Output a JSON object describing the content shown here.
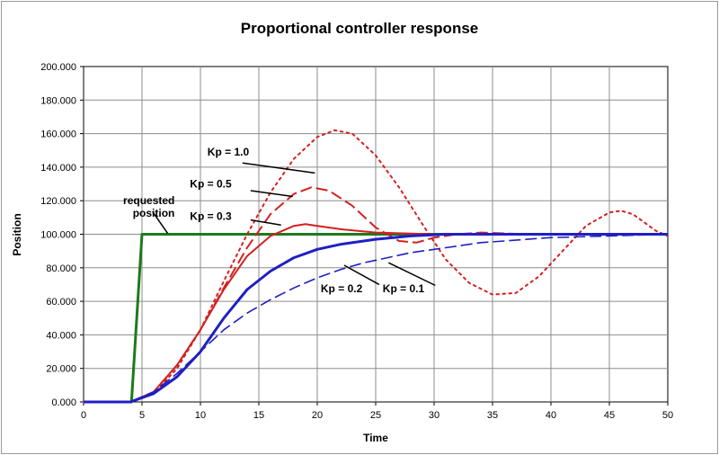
{
  "chart_data": {
    "type": "line",
    "title": "Proportional controller response",
    "xlabel": "Time",
    "ylabel": "Position",
    "xlim": [
      0,
      50
    ],
    "ylim": [
      0,
      200
    ],
    "x_ticks": [
      "0",
      "5",
      "10",
      "15",
      "20",
      "25",
      "30",
      "35",
      "40",
      "45",
      "50"
    ],
    "y_ticks": [
      "0.000",
      "20.000",
      "40.000",
      "60.000",
      "80.000",
      "100.000",
      "120.000",
      "140.000",
      "160.000",
      "180.000",
      "200.000"
    ],
    "grid": true,
    "legend": "none",
    "series": [
      {
        "color": "#1d7a1d",
        "style": "solid",
        "width": 3,
        "points": [
          [
            0,
            0
          ],
          [
            4.1,
            0
          ],
          [
            5,
            100
          ],
          [
            50,
            100
          ]
        ]
      },
      {
        "color": "#d42020",
        "style": "dotted",
        "width": 2,
        "points": [
          [
            0,
            0
          ],
          [
            4,
            0
          ],
          [
            6,
            5
          ],
          [
            8,
            20
          ],
          [
            10,
            43
          ],
          [
            12,
            72
          ],
          [
            14,
            100
          ],
          [
            16,
            125
          ],
          [
            18,
            145
          ],
          [
            20,
            158
          ],
          [
            21.5,
            162
          ],
          [
            23,
            160
          ],
          [
            25,
            147
          ],
          [
            27,
            128
          ],
          [
            29,
            106
          ],
          [
            31,
            85
          ],
          [
            33,
            71
          ],
          [
            35,
            64
          ],
          [
            37,
            65
          ],
          [
            39,
            75
          ],
          [
            41,
            90
          ],
          [
            43,
            105
          ],
          [
            45,
            113
          ],
          [
            46,
            114
          ],
          [
            47,
            112
          ],
          [
            48,
            107
          ],
          [
            49,
            102
          ],
          [
            50,
            99
          ]
        ]
      },
      {
        "color": "#d42020",
        "style": "dashed",
        "width": 2,
        "points": [
          [
            0,
            0
          ],
          [
            4,
            0
          ],
          [
            6,
            6
          ],
          [
            8,
            22
          ],
          [
            10,
            43
          ],
          [
            12,
            68
          ],
          [
            14,
            92
          ],
          [
            16,
            112
          ],
          [
            18,
            124
          ],
          [
            19.5,
            128
          ],
          [
            21,
            126
          ],
          [
            23,
            117
          ],
          [
            25,
            104
          ],
          [
            27,
            96
          ],
          [
            28.5,
            95
          ],
          [
            30,
            98
          ],
          [
            32,
            100
          ],
          [
            34,
            101
          ],
          [
            38,
            100
          ],
          [
            50,
            100
          ]
        ]
      },
      {
        "color": "#d42020",
        "style": "solid",
        "width": 2,
        "points": [
          [
            0,
            0
          ],
          [
            4,
            0
          ],
          [
            6,
            6
          ],
          [
            8,
            22
          ],
          [
            10,
            43
          ],
          [
            12,
            67
          ],
          [
            14,
            87
          ],
          [
            16,
            99
          ],
          [
            18,
            105
          ],
          [
            19,
            106
          ],
          [
            20,
            105
          ],
          [
            22,
            103
          ],
          [
            25,
            101
          ],
          [
            30,
            100
          ],
          [
            50,
            100
          ]
        ]
      },
      {
        "color": "#1f1fc4",
        "style": "solid",
        "width": 3,
        "points": [
          [
            0,
            0
          ],
          [
            4,
            0
          ],
          [
            6,
            5
          ],
          [
            8,
            15
          ],
          [
            10,
            30
          ],
          [
            12,
            50
          ],
          [
            14,
            67
          ],
          [
            16,
            78
          ],
          [
            18,
            86
          ],
          [
            20,
            91
          ],
          [
            22,
            94
          ],
          [
            25,
            97
          ],
          [
            28,
            99
          ],
          [
            31,
            100
          ],
          [
            50,
            100
          ]
        ]
      },
      {
        "color": "#1f1fc4",
        "style": "dashed",
        "width": 1.6,
        "points": [
          [
            0,
            0
          ],
          [
            4,
            0
          ],
          [
            6,
            6
          ],
          [
            8,
            17
          ],
          [
            10,
            30
          ],
          [
            12,
            43
          ],
          [
            14,
            53
          ],
          [
            16,
            61
          ],
          [
            18,
            68
          ],
          [
            20,
            74
          ],
          [
            22,
            79
          ],
          [
            24,
            83
          ],
          [
            26,
            86
          ],
          [
            28,
            89
          ],
          [
            30,
            91
          ],
          [
            32,
            93
          ],
          [
            34,
            95
          ],
          [
            36,
            96
          ],
          [
            38,
            97
          ],
          [
            40,
            98
          ],
          [
            45,
            99
          ],
          [
            50,
            100
          ]
        ]
      }
    ],
    "annotations": [
      {
        "text": "Kp = 1.0",
        "x": 10.6,
        "y": 147,
        "anchor": "start",
        "lines": [],
        "pointer": [
          13.6,
          142.5,
          19.8,
          136.5
        ]
      },
      {
        "text": "Kp = 0.5",
        "x": 9.1,
        "y": 128,
        "anchor": "start",
        "lines": [],
        "pointer": [
          14.3,
          126.0,
          17.9,
          122.5
        ]
      },
      {
        "text": "Kp = 0.3",
        "x": 9.1,
        "y": 108.5,
        "anchor": "start",
        "lines": [],
        "pointer": [
          14.3,
          108.5,
          16.9,
          105.5
        ]
      },
      {
        "text": "",
        "x": 7.8,
        "y": 118,
        "anchor": "end",
        "lines": [
          "requested",
          "position"
        ],
        "pointer": [
          5.9,
          113.5,
          7.2,
          100.5
        ]
      },
      {
        "text": "Kp = 0.2",
        "x": 20.3,
        "y": 65.5,
        "anchor": "start",
        "lines": [],
        "pointer": [
          25.3,
          70.0,
          22.3,
          81.5
        ]
      },
      {
        "text": "Kp = 0.1",
        "x": 25.6,
        "y": 65.5,
        "anchor": "start",
        "lines": [],
        "pointer": [
          30.1,
          69.5,
          26.1,
          83.0
        ]
      }
    ]
  }
}
